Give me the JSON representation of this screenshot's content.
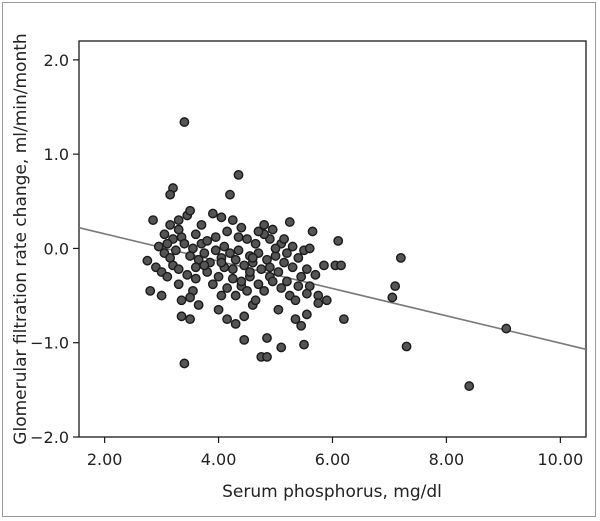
{
  "chart_data": {
    "type": "scatter",
    "title": "",
    "xlabel": "Serum phosphorus, mg/dl",
    "ylabel": "Glomerular filtration rate change, ml/min/month",
    "xlim": [
      1.55,
      10.45
    ],
    "ylim": [
      -2.0,
      2.2
    ],
    "x_ticks": [
      2.0,
      4.0,
      6.0,
      8.0,
      10.0
    ],
    "x_tick_labels": [
      "2.00",
      "4.00",
      "6.00",
      "8.00",
      "10.00"
    ],
    "y_ticks": [
      2.0,
      1.0,
      0.0,
      -1.0,
      -2.0
    ],
    "y_tick_labels": [
      "2.0",
      "1.0",
      "0.0",
      "−1.0",
      "−2.0"
    ],
    "grid": false,
    "fit_line": {
      "x": [
        1.55,
        10.45
      ],
      "y": [
        0.22,
        -1.07
      ]
    },
    "points": [
      [
        3.4,
        1.34
      ],
      [
        4.35,
        0.78
      ],
      [
        3.2,
        0.64
      ],
      [
        3.15,
        0.57
      ],
      [
        4.2,
        0.57
      ],
      [
        2.85,
        0.3
      ],
      [
        3.15,
        0.25
      ],
      [
        3.3,
        0.3
      ],
      [
        3.45,
        0.35
      ],
      [
        3.5,
        0.4
      ],
      [
        3.9,
        0.37
      ],
      [
        4.05,
        0.33
      ],
      [
        4.25,
        0.3
      ],
      [
        4.4,
        0.22
      ],
      [
        4.8,
        0.25
      ],
      [
        5.25,
        0.28
      ],
      [
        5.65,
        0.18
      ],
      [
        6.1,
        0.08
      ],
      [
        3.05,
        0.15
      ],
      [
        3.2,
        0.1
      ],
      [
        3.35,
        0.12
      ],
      [
        3.6,
        0.15
      ],
      [
        3.7,
        0.05
      ],
      [
        3.95,
        0.12
      ],
      [
        4.15,
        0.18
      ],
      [
        4.5,
        0.1
      ],
      [
        4.65,
        0.05
      ],
      [
        4.9,
        0.1
      ],
      [
        5.1,
        0.05
      ],
      [
        5.3,
        0.02
      ],
      [
        5.5,
        -0.02
      ],
      [
        2.95,
        0.02
      ],
      [
        3.05,
        -0.05
      ],
      [
        3.15,
        -0.1
      ],
      [
        3.25,
        -0.02
      ],
      [
        3.4,
        0.05
      ],
      [
        3.5,
        -0.08
      ],
      [
        3.55,
        0.0
      ],
      [
        3.65,
        -0.12
      ],
      [
        3.75,
        -0.05
      ],
      [
        3.85,
        -0.15
      ],
      [
        3.95,
        -0.02
      ],
      [
        4.05,
        -0.1
      ],
      [
        4.1,
        -0.2
      ],
      [
        4.2,
        -0.05
      ],
      [
        4.3,
        -0.12
      ],
      [
        4.35,
        -0.02
      ],
      [
        4.45,
        -0.18
      ],
      [
        4.55,
        -0.08
      ],
      [
        4.6,
        -0.15
      ],
      [
        4.7,
        -0.05
      ],
      [
        4.75,
        -0.22
      ],
      [
        4.85,
        -0.12
      ],
      [
        4.9,
        -0.3
      ],
      [
        5.0,
        -0.08
      ],
      [
        5.05,
        -0.25
      ],
      [
        5.15,
        -0.15
      ],
      [
        5.2,
        -0.35
      ],
      [
        5.3,
        -0.2
      ],
      [
        5.4,
        -0.1
      ],
      [
        5.45,
        -0.3
      ],
      [
        5.55,
        -0.22
      ],
      [
        5.6,
        -0.4
      ],
      [
        5.7,
        -0.28
      ],
      [
        5.75,
        -0.5
      ],
      [
        5.85,
        -0.18
      ],
      [
        6.05,
        -0.18
      ],
      [
        6.15,
        -0.18
      ],
      [
        2.75,
        -0.13
      ],
      [
        2.9,
        -0.2
      ],
      [
        3.0,
        -0.25
      ],
      [
        3.1,
        -0.3
      ],
      [
        3.2,
        -0.18
      ],
      [
        3.3,
        -0.22
      ],
      [
        3.45,
        -0.28
      ],
      [
        3.6,
        -0.32
      ],
      [
        3.8,
        -0.25
      ],
      [
        3.9,
        -0.38
      ],
      [
        4.0,
        -0.3
      ],
      [
        4.15,
        -0.42
      ],
      [
        4.25,
        -0.32
      ],
      [
        4.4,
        -0.4
      ],
      [
        4.55,
        -0.3
      ],
      [
        4.7,
        -0.38
      ],
      [
        4.8,
        -0.45
      ],
      [
        4.95,
        -0.35
      ],
      [
        5.1,
        -0.42
      ],
      [
        5.25,
        -0.5
      ],
      [
        2.8,
        -0.45
      ],
      [
        3.0,
        -0.5
      ],
      [
        3.3,
        -0.38
      ],
      [
        3.55,
        -0.45
      ],
      [
        4.05,
        -0.5
      ],
      [
        4.3,
        -0.5
      ],
      [
        4.5,
        -0.45
      ],
      [
        5.35,
        -0.55
      ],
      [
        5.55,
        -0.48
      ],
      [
        5.75,
        -0.58
      ],
      [
        5.9,
        -0.55
      ],
      [
        3.35,
        -0.72
      ],
      [
        3.5,
        -0.75
      ],
      [
        4.15,
        -0.75
      ],
      [
        4.3,
        -0.8
      ],
      [
        4.45,
        -0.72
      ],
      [
        5.35,
        -0.75
      ],
      [
        5.45,
        -0.82
      ],
      [
        5.55,
        -0.7
      ],
      [
        6.2,
        -0.75
      ],
      [
        3.35,
        -0.55
      ],
      [
        3.5,
        -0.52
      ],
      [
        3.65,
        -0.6
      ],
      [
        4.0,
        -0.65
      ],
      [
        4.6,
        -0.6
      ],
      [
        4.85,
        -0.95
      ],
      [
        4.45,
        -0.97
      ],
      [
        4.75,
        -1.15
      ],
      [
        4.85,
        -1.15
      ],
      [
        5.1,
        -1.05
      ],
      [
        5.5,
        -1.02
      ],
      [
        3.4,
        -1.22
      ],
      [
        7.2,
        -0.1
      ],
      [
        7.1,
        -0.4
      ],
      [
        7.05,
        -0.52
      ],
      [
        7.3,
        -1.04
      ],
      [
        8.4,
        -1.46
      ],
      [
        9.05,
        -0.85
      ],
      [
        4.1,
        0.02
      ],
      [
        4.6,
        -0.1
      ],
      [
        5.0,
        0.0
      ],
      [
        3.3,
        0.2
      ],
      [
        4.8,
        0.15
      ],
      [
        4.95,
        0.2
      ],
      [
        5.2,
        -0.05
      ],
      [
        3.75,
        -0.18
      ],
      [
        4.25,
        -0.22
      ],
      [
        4.55,
        -0.25
      ],
      [
        5.4,
        -0.4
      ],
      [
        3.6,
        -0.2
      ],
      [
        4.65,
        -0.55
      ],
      [
        5.05,
        -0.65
      ],
      [
        3.8,
        0.08
      ],
      [
        4.35,
        0.12
      ],
      [
        4.7,
        0.18
      ],
      [
        5.6,
        0.0
      ],
      [
        3.1,
        0.05
      ],
      [
        4.05,
        -0.15
      ],
      [
        4.9,
        -0.2
      ],
      [
        5.15,
        0.1
      ],
      [
        3.7,
        0.25
      ],
      [
        4.4,
        -0.35
      ]
    ]
  }
}
